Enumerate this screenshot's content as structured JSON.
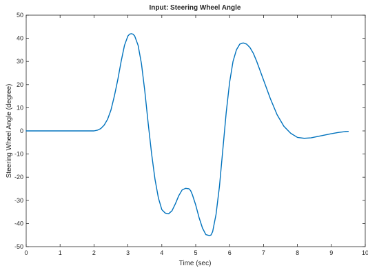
{
  "chart_data": {
    "type": "line",
    "title": "Input: Steering Wheel Angle",
    "xlabel": "Time (sec)",
    "ylabel": "Steering Wheel Angle (degree)",
    "xlim": [
      0,
      10
    ],
    "ylim": [
      -50,
      50
    ],
    "xticks": [
      0,
      1,
      2,
      3,
      4,
      5,
      6,
      7,
      8,
      9,
      10
    ],
    "yticks": [
      -50,
      -40,
      -30,
      -20,
      -10,
      0,
      10,
      20,
      30,
      40,
      50
    ],
    "grid": false,
    "legend": false,
    "colors": {
      "line": "#0072BD",
      "axes": "#262626"
    },
    "series": [
      {
        "x": [
          0,
          0.5,
          1.0,
          1.5,
          2.0,
          2.1,
          2.2,
          2.3,
          2.4,
          2.5,
          2.6,
          2.7,
          2.8,
          2.9,
          3.0,
          3.05,
          3.1,
          3.15,
          3.2,
          3.3,
          3.4,
          3.5,
          3.6,
          3.7,
          3.8,
          3.9,
          4.0,
          4.1,
          4.2,
          4.3,
          4.4,
          4.5,
          4.6,
          4.7,
          4.8,
          4.85,
          4.9,
          5.0,
          5.1,
          5.2,
          5.3,
          5.4,
          5.45,
          5.5,
          5.6,
          5.7,
          5.8,
          5.9,
          6.0,
          6.1,
          6.2,
          6.3,
          6.4,
          6.5,
          6.6,
          6.7,
          6.8,
          6.9,
          7.0,
          7.2,
          7.4,
          7.6,
          7.8,
          8.0,
          8.2,
          8.4,
          8.6,
          8.8,
          9.0,
          9.2,
          9.4,
          9.5
        ],
        "y": [
          0,
          0,
          0,
          0,
          0,
          0.3,
          1.0,
          2.5,
          5.0,
          9.0,
          15.0,
          22.0,
          30.0,
          37.0,
          41.0,
          41.8,
          42.0,
          41.8,
          41.0,
          37.0,
          29.0,
          17.0,
          3.0,
          -10.0,
          -21.0,
          -29.0,
          -34.0,
          -35.5,
          -35.8,
          -34.5,
          -31.5,
          -28.0,
          -25.5,
          -24.8,
          -25.0,
          -25.8,
          -27.5,
          -32.0,
          -37.5,
          -42.0,
          -44.8,
          -45.2,
          -45.0,
          -43.5,
          -36.0,
          -24.0,
          -8.0,
          8.0,
          21.0,
          30.0,
          35.0,
          37.5,
          38.0,
          37.5,
          36.0,
          33.5,
          30.0,
          26.0,
          22.0,
          14.0,
          7.0,
          2.0,
          -1.0,
          -2.8,
          -3.2,
          -3.0,
          -2.4,
          -1.8,
          -1.2,
          -0.7,
          -0.3,
          -0.2
        ]
      }
    ]
  }
}
